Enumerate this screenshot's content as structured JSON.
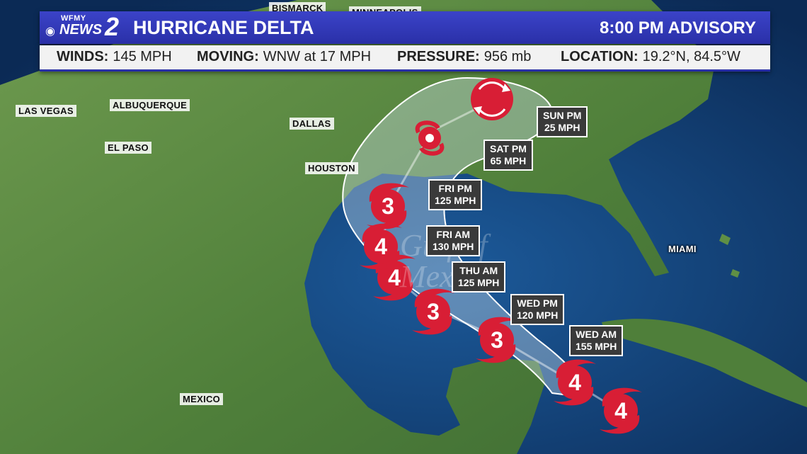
{
  "header": {
    "logo_small": "WFMY",
    "logo_news": "NEWS",
    "logo_number": "2",
    "title": "HURRICANE DELTA",
    "advisory": "8:00 PM ADVISORY"
  },
  "stats": [
    {
      "key": "WINDS:",
      "value": "145 MPH"
    },
    {
      "key": "MOVING:",
      "value": "WNW at 17 MPH"
    },
    {
      "key": "PRESSURE:",
      "value": "956 mb"
    },
    {
      "key": "LOCATION:",
      "value": "19.2°N, 84.5°W"
    }
  ],
  "cities": {
    "bismarck": "BISMARCK",
    "minneapolis": "MINNEAPOLIS",
    "las_vegas": "LAS VEGAS",
    "albuquerque": "ALBUQUERQUE",
    "el_paso": "EL PASO",
    "dallas": "DALLAS",
    "houston": "HOUSTON",
    "miami": "MIAMI",
    "mexico": "MEXICO"
  },
  "water_label": [
    "Gulf of",
    "Mexico"
  ],
  "forecast_points": [
    {
      "time": "WED AM",
      "wind": "155 MPH",
      "category": "4"
    },
    {
      "time": "WED PM",
      "wind": "120 MPH",
      "category": "3"
    },
    {
      "time": "THU AM",
      "wind": "125 MPH",
      "category": "3"
    },
    {
      "time": "",
      "wind": "",
      "category": "4"
    },
    {
      "time": "FRI AM",
      "wind": "130 MPH",
      "category": "4"
    },
    {
      "time": "FRI PM",
      "wind": "125 MPH",
      "category": "3"
    },
    {
      "time": "SAT PM",
      "wind": "65 MPH",
      "category": ""
    },
    {
      "time": "SUN PM",
      "wind": "25 MPH",
      "category": "L"
    }
  ],
  "current_position": {
    "category": "4"
  },
  "colors": {
    "header": "#2a30a8",
    "storm": "#d81e35",
    "land": "#5f8f45",
    "water": "#123f7a",
    "cone": "#cfe3f0"
  },
  "icons": {
    "low": "clockwise-arrows",
    "tropical_storm": "storm-spiral"
  }
}
